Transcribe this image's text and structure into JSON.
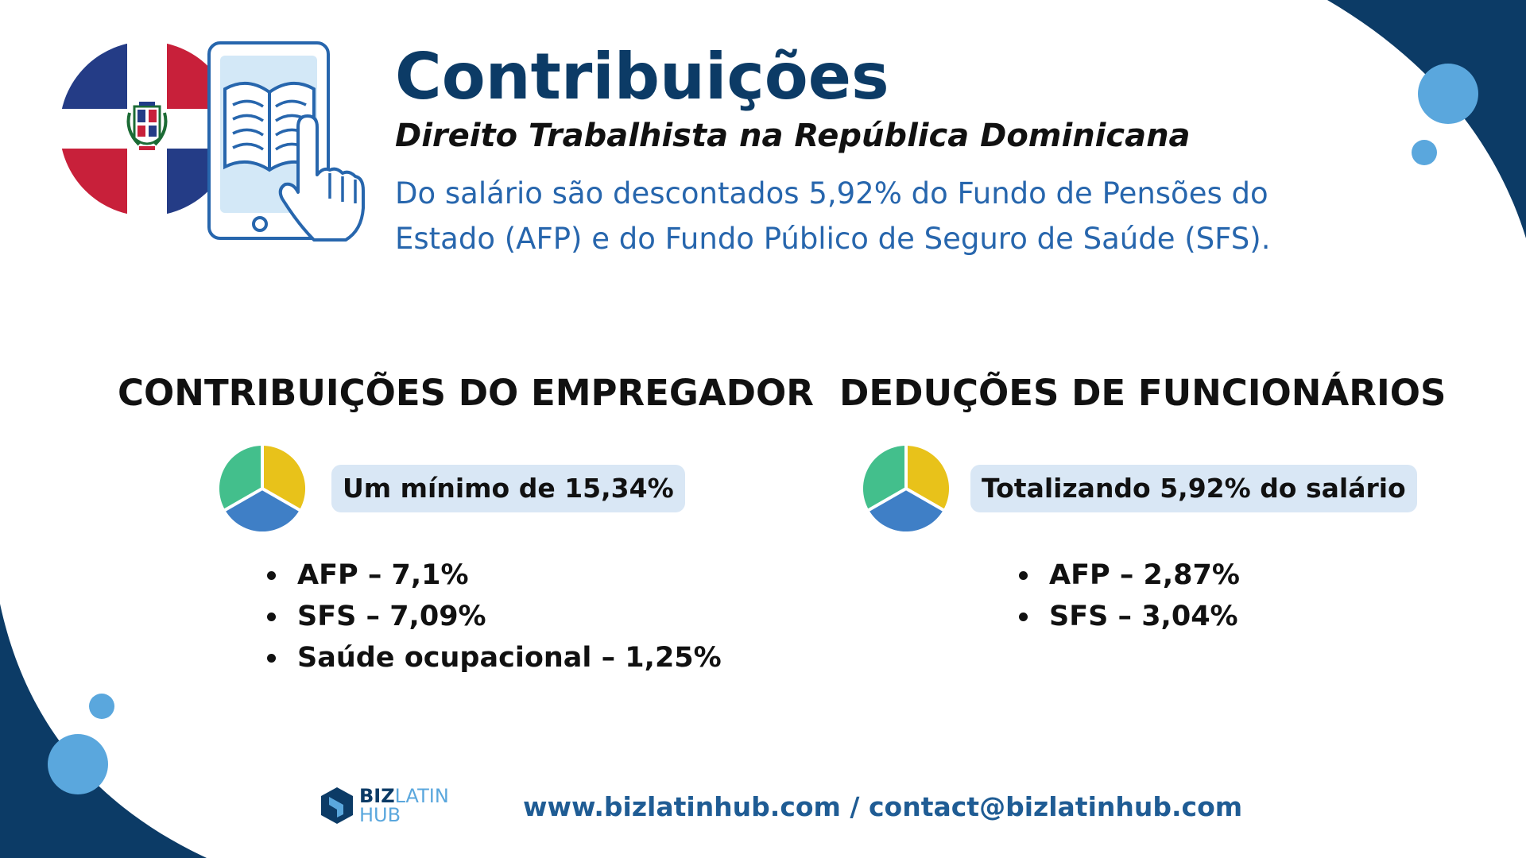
{
  "header": {
    "title": "Contribuições",
    "subtitle": "Direito Trabalhista na República Dominicana",
    "description": "Do salário são descontados 5,92% do Fundo de Pensões do Estado (AFP) e do Fundo Público de Seguro de Saúde (SFS)."
  },
  "employer": {
    "heading": "CONTRIBUIÇÕES DO EMPREGADOR",
    "summary": "Um mínimo de 15,34%",
    "items": [
      "AFP – 7,1%",
      "SFS – 7,09%",
      "Saúde ocupacional – 1,25%"
    ]
  },
  "employee": {
    "heading": "DEDUÇÕES DE FUNCIONÁRIOS",
    "summary": "Totalizando 5,92% do salário",
    "items": [
      "AFP – 2,87%",
      "SFS – 3,04%"
    ]
  },
  "footer": {
    "logo_biz": "BIZ",
    "logo_latin": "LATIN",
    "logo_hub": "HUB",
    "contact": "www.bizlatinhub.com / contact@bizlatinhub.com"
  },
  "colors": {
    "navy": "#0c3b66",
    "accent_blue": "#2766ad",
    "pie_yellow": "#e8c21a",
    "pie_blue": "#3f7fc6",
    "pie_green": "#43bf8c",
    "flag_red": "#c8203a",
    "flag_blue": "#243c86"
  },
  "icons": [
    "dominican-flag-icon",
    "tablet-book-hand-icon",
    "pie-chart-icon",
    "bizlatinhub-logo-icon"
  ]
}
